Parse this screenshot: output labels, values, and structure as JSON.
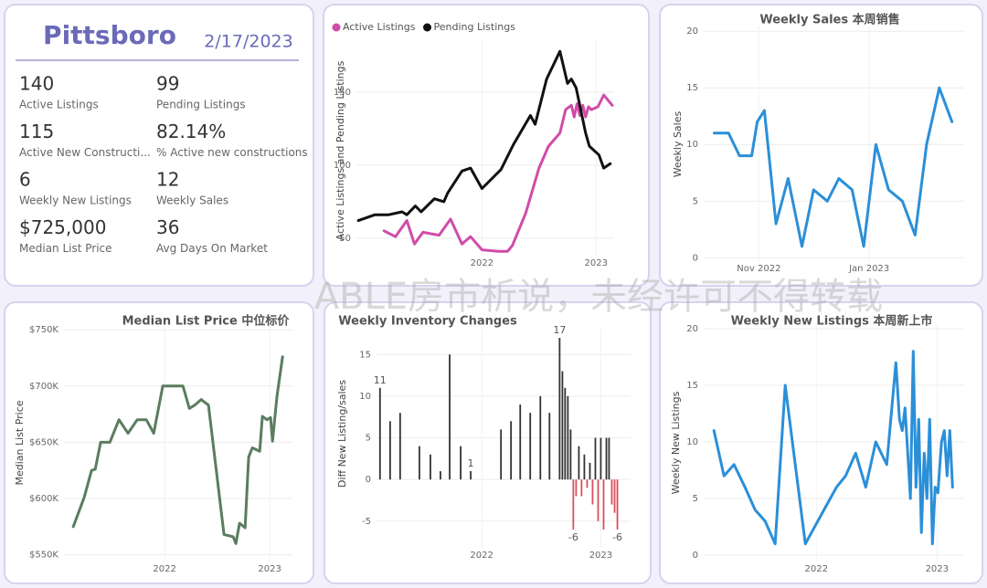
{
  "kpi": {
    "title": "Pittsboro",
    "date": "2/17/2023",
    "items": [
      {
        "value": "140",
        "label": "Active Listings"
      },
      {
        "value": "99",
        "label": "Pending Listings"
      },
      {
        "value": "115",
        "label": "Active New Constructi..."
      },
      {
        "value": "82.14%",
        "label": "% Active new constructions"
      },
      {
        "value": "6",
        "label": "Weekly New Listings"
      },
      {
        "value": "12",
        "label": "Weekly Sales"
      },
      {
        "value": "$725,000",
        "label": "Median List Price"
      },
      {
        "value": "36",
        "label": "Avg Days On Market"
      }
    ]
  },
  "watermark": "ABLE房市析说，未经许可不得转载",
  "chart_data": [
    {
      "type": "line",
      "ylabel": "Active Listings and Pending Listings",
      "legend": "top-left",
      "series": [
        {
          "name": "Active Listings",
          "color": "#d04ca8",
          "x": [
            1.7,
            2.9,
            4.1,
            4.9,
            5.8,
            7.5,
            8.7,
            9.9,
            10.8,
            12,
            13.7,
            14.7,
            15.2,
            16.6,
            18,
            19,
            20.2,
            20.8,
            21.4,
            21.7,
            22,
            22.3,
            22.6,
            22.9,
            23.2,
            23.5,
            24.2,
            24.8,
            25.7
          ],
          "values": [
            55,
            51,
            62,
            46,
            54,
            52,
            63,
            46,
            51,
            42,
            41,
            41,
            45,
            67,
            98,
            113,
            122,
            138,
            141,
            133,
            142,
            134,
            141,
            133,
            140,
            138,
            140,
            148,
            141
          ]
        },
        {
          "name": "Pending Listings",
          "color": "#111111",
          "x": [
            -1,
            0.75,
            2.2,
            3.6,
            4.1,
            5,
            5.6,
            7,
            8,
            8.4,
            9.9,
            10.8,
            12,
            14,
            15.3,
            17.1,
            17.6,
            18.8,
            20.2,
            21,
            21.4,
            21.9,
            22.9,
            23.3,
            24.3,
            24.8,
            25.5
          ],
          "values": [
            62,
            66,
            66,
            68,
            66,
            72,
            68,
            77,
            75,
            81,
            96,
            98,
            84,
            97,
            114,
            134,
            128,
            159,
            178,
            156,
            159,
            153,
            122,
            113,
            107,
            98,
            101
          ]
        }
      ],
      "xlim": [
        -1.2,
        25.9
      ],
      "xticks": [
        {
          "value": 12,
          "label": "2022"
        },
        {
          "value": 24,
          "label": "2023"
        }
      ],
      "ylim": [
        38,
        185
      ],
      "yticks": [
        50,
        100,
        150
      ],
      "grid": true
    },
    {
      "type": "line",
      "title": "Weekly Sales 本周销售",
      "ylabel": "Weekly Sales",
      "color": "#2b8fd8",
      "x": [
        -0.81,
        -0.55,
        -0.35,
        -0.13,
        -0.03,
        0.1,
        0.31,
        0.53,
        0.78,
        0.99,
        1.24,
        1.45,
        1.69,
        1.9,
        2.12,
        2.35,
        2.6,
        2.83,
        3.04,
        3.27,
        3.5
      ],
      "values": [
        11,
        11,
        9,
        9,
        12,
        13,
        3,
        7,
        1,
        6,
        5,
        7,
        6,
        1,
        10,
        6,
        5,
        2,
        10,
        15,
        12
      ],
      "xlim": [
        -1,
        3.72
      ],
      "xticks": [
        {
          "value": 0,
          "label": "Nov 2022"
        },
        {
          "value": 2,
          "label": "Jan 2023"
        }
      ],
      "ylim": [
        -0.3,
        20.5
      ],
      "yticks": [
        0,
        5,
        10,
        15,
        20
      ],
      "grid": true
    },
    {
      "type": "line",
      "title": "Median List Price  中位标价",
      "ylabel": "Median List Price",
      "color": "#5a7d5f",
      "x": [
        1.56,
        2.81,
        3.65,
        4.07,
        4.69,
        5.74,
        6.78,
        7.82,
        8.87,
        9.91,
        10.75,
        11.79,
        13.57,
        14.09,
        14.82,
        15.44,
        16.17,
        17.01,
        18.78,
        19.83,
        20.14,
        20.56,
        21.19,
        21.6,
        22.02,
        22.86,
        23.17,
        23.69,
        24.11,
        24.32,
        24.84,
        25.47
      ],
      "values": [
        575000,
        601000,
        625000,
        626000,
        650000,
        650000,
        670000,
        658000,
        670000,
        670000,
        658000,
        700000,
        700000,
        700000,
        680000,
        683000,
        688000,
        683000,
        568000,
        566000,
        560000,
        578000,
        574000,
        637000,
        645000,
        642000,
        673000,
        670000,
        672000,
        651000,
        691000,
        726000
      ],
      "xlim": [
        0.5,
        26.6
      ],
      "xticks": [
        {
          "value": 12,
          "label": "2022"
        },
        {
          "value": 24,
          "label": "2023"
        }
      ],
      "ylim": [
        544000,
        755000
      ],
      "yticks": [
        {
          "value": 550000,
          "label": "$550K"
        },
        {
          "value": 600000,
          "label": "$600K"
        },
        {
          "value": 650000,
          "label": "$650K"
        },
        {
          "value": 700000,
          "label": "$700K"
        },
        {
          "value": 750000,
          "label": "$750K"
        }
      ],
      "grid": true
    },
    {
      "type": "bar",
      "title": "Weekly Inventory Changes",
      "ylabel": "Diff New Listing/sales",
      "color": "#333333",
      "negative_color": "#d9505e",
      "x": [
        1.75,
        2.77,
        3.78,
        5.72,
        6.83,
        7.84,
        8.77,
        9.88,
        10.89,
        13.94,
        14.95,
        15.88,
        16.89,
        17.91,
        18.83,
        19.85,
        20.13,
        20.4,
        20.68,
        20.96,
        21.23,
        21.51,
        21.79,
        22.06,
        22.34,
        22.62,
        22.9,
        23.17,
        23.45,
        23.73,
        24.0,
        24.28,
        24.56,
        24.83,
        25.11,
        25.39,
        25.67
      ],
      "values": [
        11,
        7,
        8,
        4,
        3,
        1,
        15,
        4,
        1,
        6,
        7,
        9,
        8,
        10,
        8,
        17,
        13,
        11,
        10,
        6,
        -6,
        -2,
        4,
        -2,
        3,
        -1,
        2,
        -3,
        5,
        -5,
        5,
        -6,
        5,
        5,
        -3,
        -4,
        -6
      ],
      "value_labels": [
        "11",
        null,
        null,
        null,
        null,
        null,
        null,
        null,
        "1",
        null,
        null,
        null,
        null,
        null,
        null,
        "17",
        null,
        null,
        null,
        null,
        "-6",
        null,
        null,
        null,
        null,
        null,
        null,
        null,
        null,
        null,
        null,
        null,
        null,
        null,
        null,
        null,
        "-6"
      ],
      "xlim": [
        1.4,
        27
      ],
      "xticks": [
        {
          "value": 12,
          "label": "2022"
        },
        {
          "value": 24,
          "label": "2023"
        }
      ],
      "ylim": [
        -8.2,
        18.1
      ],
      "yticks": [
        -5,
        0,
        5,
        10,
        15
      ],
      "grid": true
    },
    {
      "type": "line",
      "title": "Weekly New Listings  本周新上市",
      "ylabel": "Weekly New Listings",
      "color": "#2b8fd8",
      "x": [
        1.82,
        2.82,
        3.82,
        4.91,
        5.91,
        6.91,
        7.91,
        8.91,
        10.91,
        14.0,
        14.91,
        15.91,
        16.91,
        17.91,
        19.0,
        19.91,
        20.27,
        20.55,
        20.82,
        21.09,
        21.36,
        21.64,
        21.91,
        22.18,
        22.45,
        22.73,
        23.0,
        23.27,
        23.55,
        23.82,
        24.09,
        24.45,
        24.73,
        25.0,
        25.27,
        25.55
      ],
      "values": [
        11,
        7,
        8,
        6,
        4,
        3,
        1,
        15,
        1,
        6,
        7,
        9,
        6,
        10,
        8,
        17,
        12,
        11,
        13,
        9,
        5,
        18,
        6,
        12,
        2,
        9,
        5,
        12,
        1,
        6,
        5.5,
        10,
        11,
        7,
        11,
        6
      ],
      "xlim": [
        0.8,
        26.7
      ],
      "xticks": [
        {
          "value": 12,
          "label": "2022"
        },
        {
          "value": 24,
          "label": "2023"
        }
      ],
      "ylim": [
        -0.56,
        20.4
      ],
      "yticks": [
        0,
        5,
        10,
        15,
        20
      ],
      "grid": true
    }
  ]
}
